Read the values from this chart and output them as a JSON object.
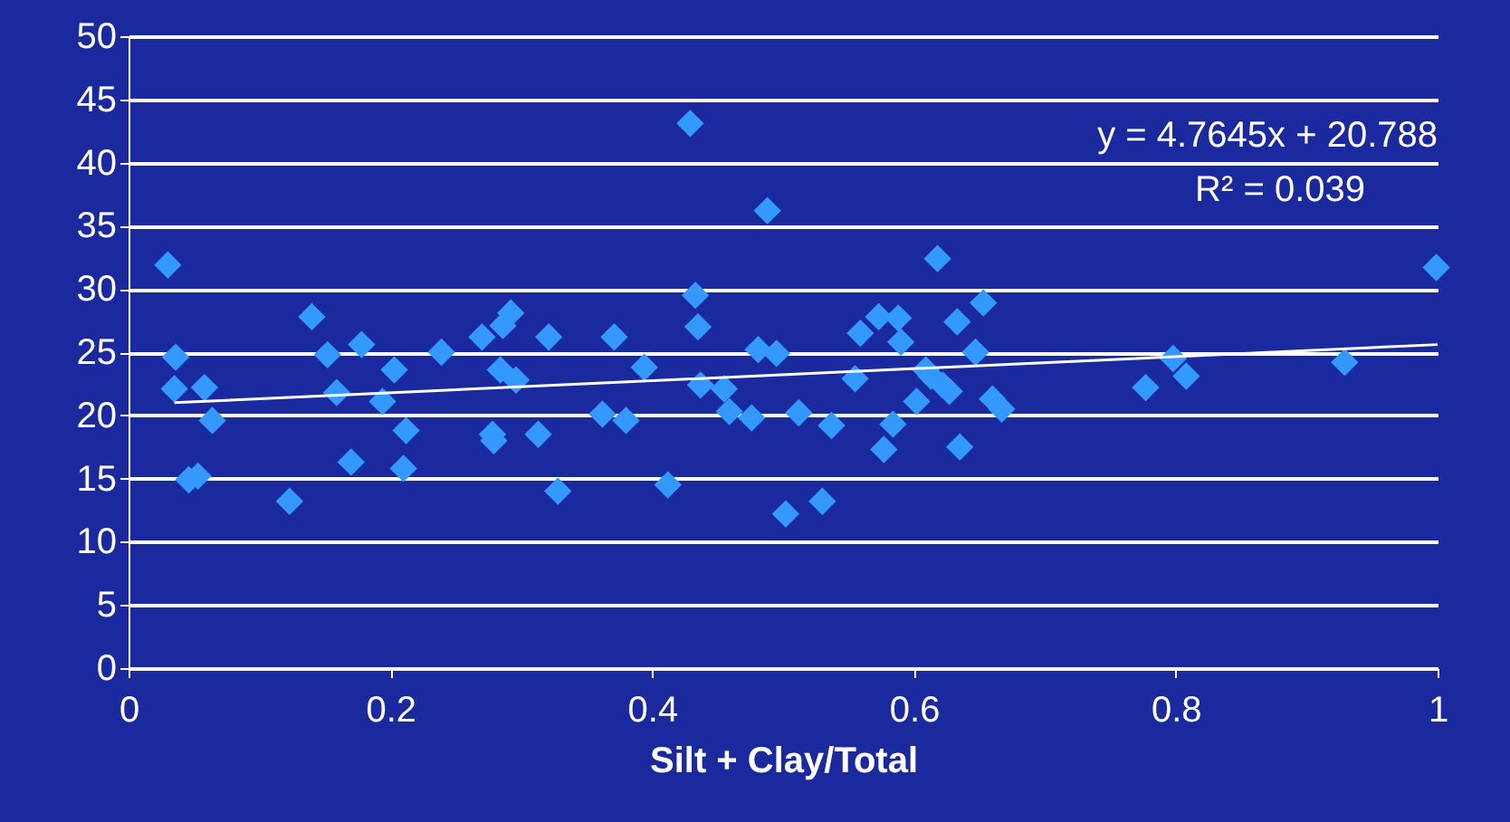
{
  "chart_data": {
    "type": "scatter",
    "xlabel": "Silt + Clay/Total",
    "xlim": [
      0,
      1
    ],
    "xticks": [
      0,
      0.2,
      0.4,
      0.6,
      0.8,
      1
    ],
    "ylim": [
      0,
      50
    ],
    "yticks": [
      0,
      5,
      10,
      15,
      20,
      25,
      30,
      35,
      40,
      45,
      50
    ],
    "grid": "y",
    "marker": "diamond",
    "annotations": [
      "y = 4.7645x + 20.788",
      "R² = 0.039"
    ],
    "series": [
      {
        "color": "#3399ff",
        "x": [
          0.03,
          0.036,
          0.035,
          0.058,
          0.064,
          0.046,
          0.053,
          0.123,
          0.14,
          0.152,
          0.159,
          0.17,
          0.178,
          0.194,
          0.203,
          0.212,
          0.21,
          0.239,
          0.27,
          0.278,
          0.279,
          0.284,
          0.292,
          0.286,
          0.296,
          0.313,
          0.321,
          0.328,
          0.362,
          0.371,
          0.38,
          0.394,
          0.412,
          0.429,
          0.433,
          0.435,
          0.437,
          0.455,
          0.459,
          0.476,
          0.481,
          0.488,
          0.495,
          0.502,
          0.512,
          0.53,
          0.537,
          0.555,
          0.559,
          0.577,
          0.573,
          0.584,
          0.588,
          0.59,
          0.602,
          0.609,
          0.618,
          0.613,
          0.622,
          0.627,
          0.633,
          0.635,
          0.653,
          0.647,
          0.66,
          0.667,
          0.777,
          0.798,
          0.808,
          0.929,
          0.999
        ],
        "values": [
          31.9,
          24.6,
          22.1,
          22.2,
          19.6,
          14.9,
          15.2,
          13.2,
          27.8,
          24.8,
          21.8,
          16.3,
          25.6,
          21.1,
          23.6,
          18.8,
          15.8,
          25.0,
          26.2,
          18.5,
          18.0,
          23.6,
          28.1,
          27.1,
          22.8,
          18.5,
          26.2,
          14.0,
          20.1,
          26.2,
          19.6,
          23.8,
          14.5,
          43.1,
          29.5,
          27.0,
          22.4,
          22.1,
          20.3,
          19.8,
          25.2,
          36.2,
          24.9,
          12.2,
          20.2,
          13.2,
          19.2,
          22.9,
          26.5,
          17.3,
          27.8,
          19.3,
          27.7,
          25.8,
          21.1,
          23.6,
          32.4,
          23.1,
          22.4,
          21.9,
          27.4,
          17.5,
          28.9,
          25.0,
          21.3,
          20.5,
          22.2,
          24.5,
          23.1,
          24.2,
          31.7
        ]
      },
      {
        "type": "line",
        "marker": "none",
        "color": "#ffffff",
        "x": [
          0.035,
          1
        ],
        "values": [
          21.0,
          25.6
        ]
      }
    ]
  }
}
